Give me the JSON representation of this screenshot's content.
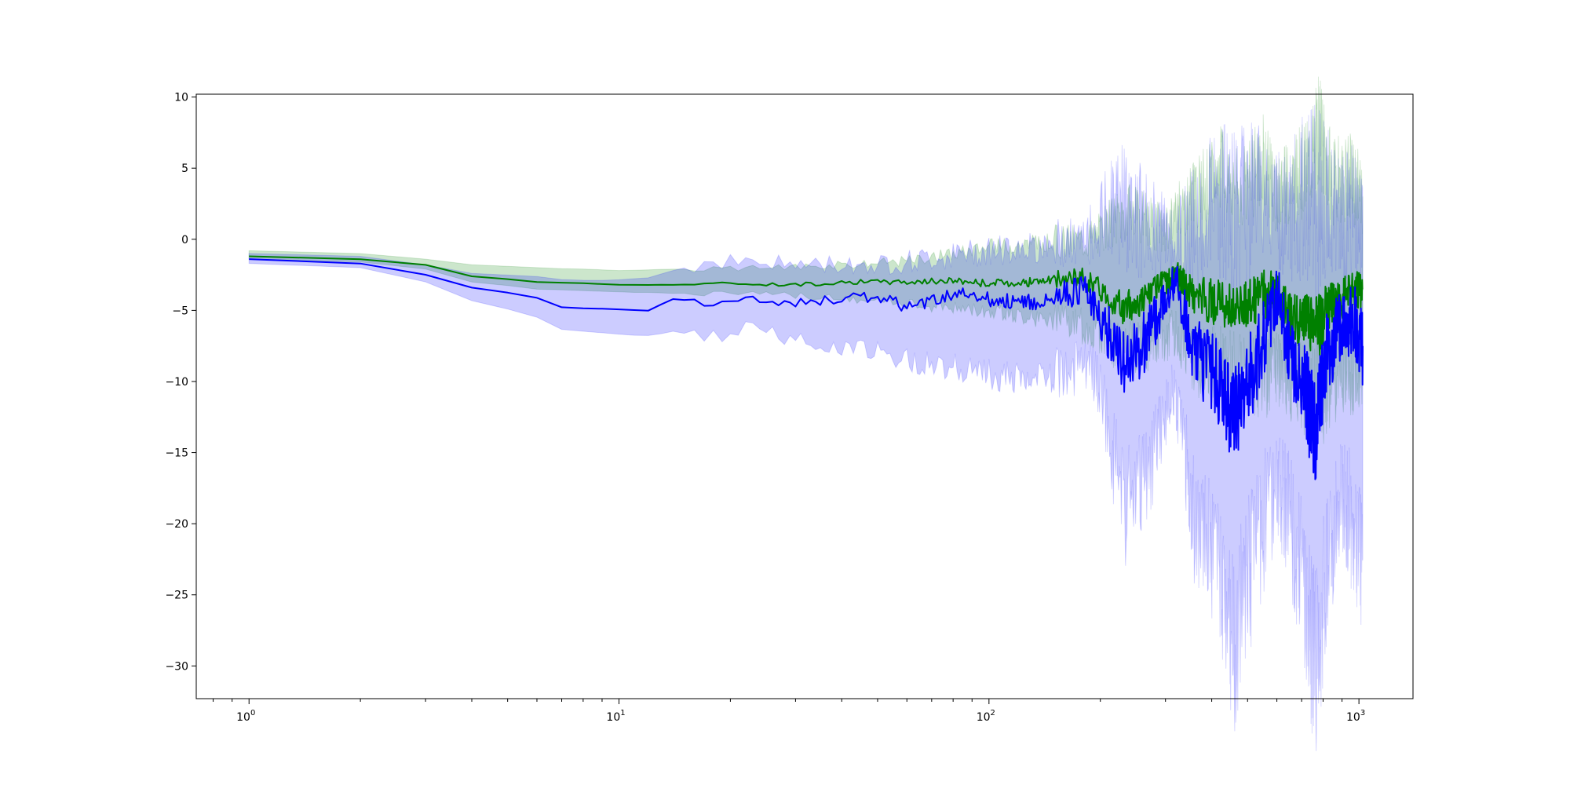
{
  "chart_data": {
    "type": "line",
    "title": "",
    "xlabel": "",
    "ylabel": "",
    "xscale": "log",
    "xlim": [
      0.72,
      1400
    ],
    "ylim": [
      -32.3,
      10.2
    ],
    "grid": false,
    "legend": "none",
    "y_ticks": [
      10,
      5,
      0,
      -5,
      -10,
      -15,
      -20,
      -25,
      -30
    ],
    "y_tick_labels": [
      "10",
      "5",
      "0",
      "−5",
      "−10",
      "−15",
      "−20",
      "−25",
      "−30"
    ],
    "x_ticks": [
      {
        "value": 1,
        "base": "10",
        "exp": "0"
      },
      {
        "value": 10,
        "base": "10",
        "exp": "1"
      },
      {
        "value": 100,
        "base": "10",
        "exp": "2"
      },
      {
        "value": 1000,
        "base": "10",
        "exp": "3"
      }
    ],
    "series": [
      {
        "color": "#008000",
        "band_color": "#008000",
        "band_opacity": 0.2,
        "points": [
          [
            1,
            -1.2,
            -1.4,
            -0.8
          ],
          [
            2,
            -1.4,
            -1.6,
            -1.0
          ],
          [
            3,
            -1.8,
            -2.1,
            -1.4
          ],
          [
            4,
            -2.6,
            -3.0,
            -1.8
          ],
          [
            6,
            -3.0,
            -3.5,
            -2.0
          ],
          [
            8,
            -3.1,
            -3.6,
            -2.1
          ],
          [
            10,
            -3.2,
            -3.7,
            -2.2
          ],
          [
            14,
            -3.2,
            -3.8,
            -2.1
          ],
          [
            20,
            -3.1,
            -3.8,
            -2.1
          ],
          [
            30,
            -3.2,
            -4.0,
            -1.9
          ],
          [
            40,
            -3.0,
            -4.2,
            -1.8
          ],
          [
            60,
            -3.0,
            -4.6,
            -1.5
          ],
          [
            80,
            -2.9,
            -4.8,
            -1.0
          ],
          [
            100,
            -3.1,
            -5.0,
            -0.5
          ],
          [
            130,
            -3.0,
            -5.5,
            -0.3
          ],
          [
            180,
            -2.7,
            -6.2,
            0.0
          ],
          [
            200,
            -3.5,
            -6.5,
            0.5
          ],
          [
            230,
            -4.9,
            -8.0,
            2.0
          ],
          [
            260,
            -4.2,
            -7.5,
            1.5
          ],
          [
            300,
            -3.0,
            -7.0,
            0.5
          ],
          [
            320,
            -2.5,
            -6.5,
            2.0
          ],
          [
            360,
            -4.0,
            -8.5,
            3.0
          ],
          [
            420,
            -4.5,
            -9.0,
            5.0
          ],
          [
            480,
            -4.7,
            -9.0,
            3.5
          ],
          [
            550,
            -4.0,
            -9.5,
            5.5
          ],
          [
            600,
            -3.6,
            -9.0,
            3.0
          ],
          [
            650,
            -5.5,
            -10.0,
            4.0
          ],
          [
            720,
            -5.8,
            -10.5,
            5.0
          ],
          [
            780,
            -6.0,
            -11.0,
            7.5
          ],
          [
            850,
            -4.5,
            -10.0,
            4.0
          ],
          [
            950,
            -3.8,
            -9.5,
            4.5
          ],
          [
            1024,
            -3.5,
            -9.0,
            3.0
          ]
        ]
      },
      {
        "color": "#0000ff",
        "band_color": "#0000ff",
        "band_opacity": 0.2,
        "points": [
          [
            1,
            -1.4,
            -1.7,
            -1.0
          ],
          [
            2,
            -1.7,
            -2.0,
            -1.2
          ],
          [
            3,
            -2.5,
            -3.0,
            -1.8
          ],
          [
            4,
            -3.4,
            -4.3,
            -2.4
          ],
          [
            6,
            -4.1,
            -5.5,
            -2.6
          ],
          [
            7,
            -4.8,
            -6.3,
            -2.8
          ],
          [
            9,
            -4.9,
            -6.6,
            -2.9
          ],
          [
            12,
            -5.0,
            -6.8,
            -2.7
          ],
          [
            14,
            -4.2,
            -6.5,
            -2.2
          ],
          [
            18,
            -4.5,
            -6.8,
            -1.5
          ],
          [
            22,
            -4.2,
            -6.3,
            -1.6
          ],
          [
            30,
            -4.5,
            -7.0,
            -1.8
          ],
          [
            40,
            -4.2,
            -7.5,
            -1.8
          ],
          [
            50,
            -4.0,
            -8.0,
            -1.8
          ],
          [
            60,
            -4.8,
            -8.5,
            -1.6
          ],
          [
            80,
            -3.8,
            -9.0,
            -1.2
          ],
          [
            100,
            -4.2,
            -9.5,
            -0.8
          ],
          [
            130,
            -4.5,
            -10.0,
            -0.5
          ],
          [
            180,
            -3.5,
            -9.0,
            -0.5
          ],
          [
            200,
            -5.5,
            -10.5,
            1.5
          ],
          [
            230,
            -8.5,
            -19.0,
            2.5
          ],
          [
            260,
            -7.5,
            -17.5,
            1.0
          ],
          [
            300,
            -4.0,
            -12.0,
            0.5
          ],
          [
            320,
            -3.0,
            -11.0,
            0.0
          ],
          [
            360,
            -8.0,
            -20.0,
            1.0
          ],
          [
            420,
            -10.0,
            -23.0,
            2.5
          ],
          [
            460,
            -12.5,
            -28.5,
            1.5
          ],
          [
            520,
            -9.0,
            -22.0,
            3.0
          ],
          [
            600,
            -4.0,
            -17.0,
            2.0
          ],
          [
            650,
            -8.0,
            -20.0,
            2.0
          ],
          [
            720,
            -11.0,
            -25.0,
            3.0
          ],
          [
            760,
            -13.5,
            -29.5,
            3.0
          ],
          [
            820,
            -8.0,
            -24.0,
            2.0
          ],
          [
            900,
            -6.0,
            -18.0,
            1.5
          ],
          [
            960,
            -5.5,
            -20.0,
            2.0
          ],
          [
            1024,
            -7.5,
            -22.5,
            1.0
          ]
        ]
      }
    ]
  }
}
